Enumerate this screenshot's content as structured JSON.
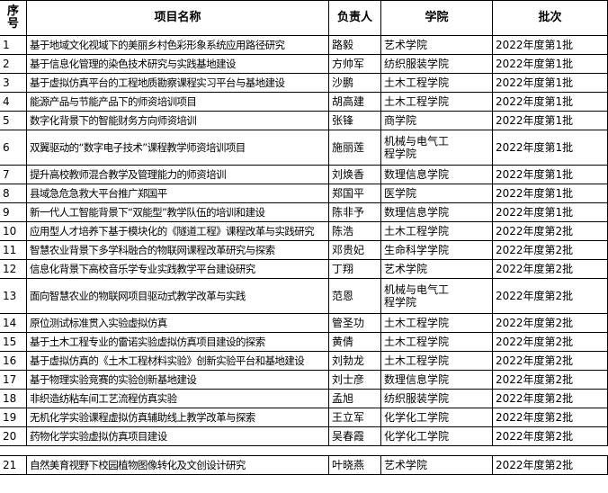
{
  "table": {
    "header": [
      "序号",
      "项目名称",
      "负责人",
      "学院",
      "批次"
    ],
    "rows": [
      [
        "1",
        "基于地域文化视域下的美丽乡村色彩形象系统应用路径研究",
        "路毅",
        "艺术学院",
        "2022年度第1批"
      ],
      [
        "2",
        "基于信息化管理的染色技术研究与实践基地建设",
        "方帅军",
        "纺织服装学院",
        "2022年度第1批"
      ],
      [
        "3",
        "基于虚拟仿真平台的工程地质勘察课程实习平台与基地建设",
        "沙鹏",
        "土木工程学院",
        "2022年度第1批"
      ],
      [
        "4",
        "能源产品与节能产品下的师资培训项目",
        "胡高建",
        "土木工程学院",
        "2022年度第1批"
      ],
      [
        "5",
        "数字化背景下的智能财务方向师资培训",
        "张锋",
        "商学院",
        "2022年度第1批"
      ],
      [
        "6",
        "双翼驱动的“数字电子技术”课程教学师资培训项目",
        "施丽莲",
        "机械与电气工程学院",
        "2022年度第1批"
      ],
      [
        "7",
        "提升高校教师混合教学及管理能力的师资培训",
        "刘焕香",
        "数理信息学院",
        "2022年度第1批"
      ],
      [
        "8",
        "县域急危急救大平台推广郑国平",
        "郑国平",
        "医学院",
        "2022年度第1批"
      ],
      [
        "9",
        "新一代人工智能背景下“双能型”教学队伍的培训和建设",
        "陈非予",
        "数理信息学院",
        "2022年度第1批"
      ],
      [
        "10",
        "应用型人才培养下基于模块化的《隧道工程》课程改革与实践研究",
        "陈浩",
        "土木工程学院",
        "2022年度第2批"
      ],
      [
        "11",
        "智慧农业背景下多学科融合的物联网课程改革研究与探索",
        "邓贵妃",
        "生命科学学院",
        "2022年度第2批"
      ],
      [
        "12",
        "信息化背景下高校音乐学专业实践教学平台建设研究",
        "丁翔",
        "艺术学院",
        "2022年度第2批"
      ],
      [
        "13",
        "面向智慧农业的物联网项目驱动式教学改革与实践",
        "范恩",
        "机械与电气工程学院",
        "2022年度第2批"
      ],
      [
        "14",
        "原位测试标准贯入实验虚拟仿真",
        "管圣功",
        "土木工程学院",
        "2022年度第2批"
      ],
      [
        "15",
        "基于土木工程专业的雷诺实验虚拟仿真项目建设的探索",
        "黄倩",
        "土木工程学院",
        "2022年度第2批"
      ],
      [
        "16",
        "基于虚拟仿真的《土木工程材料实验》创新实验平台和基地建设",
        "刘勃龙",
        "土木工程学院",
        "2022年度第2批"
      ],
      [
        "17",
        "基于物理实验竞赛的实验创新基地建设",
        "刘士彦",
        "数理信息学院",
        "2022年度第2批"
      ],
      [
        "18",
        "非织造纺粘车间工艺流程仿真实验",
        "孟旭",
        "纺织服装学院",
        "2022年度第2批"
      ],
      [
        "19",
        "无机化学实验课程虚拟仿真辅助线上教学改革与探索",
        "王立军",
        "化学化工学院",
        "2022年度第2批"
      ],
      [
        "20",
        "药物化学实验虚拟仿真项目建设",
        "吴春霞",
        "化学化工学院",
        "2022年度第2批"
      ]
    ],
    "after_gap_rows": [
      [
        "21",
        "自然美育视野下校园植物图像转化及文创设计研究",
        "叶晓燕",
        "艺术学院",
        "2022年度第2批"
      ]
    ]
  }
}
